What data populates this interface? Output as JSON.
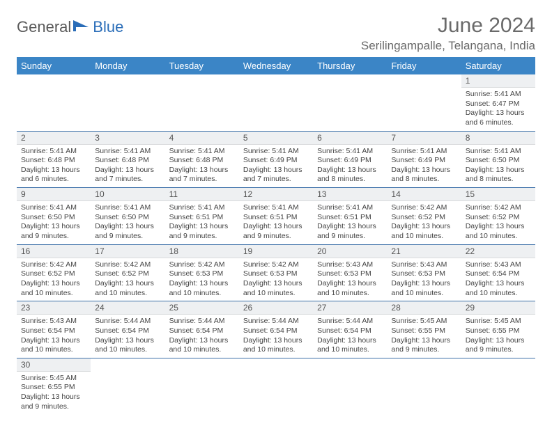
{
  "brand": {
    "word1": "General",
    "word2": "Blue"
  },
  "title": "June 2024",
  "location": "Serilingampalle, Telangana, India",
  "header_bg": "#3b85c6",
  "columns": [
    "Sunday",
    "Monday",
    "Tuesday",
    "Wednesday",
    "Thursday",
    "Friday",
    "Saturday"
  ],
  "weeks": [
    [
      null,
      null,
      null,
      null,
      null,
      null,
      {
        "n": "1",
        "sr": "5:41 AM",
        "ss": "6:47 PM",
        "dl": "13 hours and 6 minutes."
      }
    ],
    [
      {
        "n": "2",
        "sr": "5:41 AM",
        "ss": "6:48 PM",
        "dl": "13 hours and 6 minutes."
      },
      {
        "n": "3",
        "sr": "5:41 AM",
        "ss": "6:48 PM",
        "dl": "13 hours and 7 minutes."
      },
      {
        "n": "4",
        "sr": "5:41 AM",
        "ss": "6:48 PM",
        "dl": "13 hours and 7 minutes."
      },
      {
        "n": "5",
        "sr": "5:41 AM",
        "ss": "6:49 PM",
        "dl": "13 hours and 7 minutes."
      },
      {
        "n": "6",
        "sr": "5:41 AM",
        "ss": "6:49 PM",
        "dl": "13 hours and 8 minutes."
      },
      {
        "n": "7",
        "sr": "5:41 AM",
        "ss": "6:49 PM",
        "dl": "13 hours and 8 minutes."
      },
      {
        "n": "8",
        "sr": "5:41 AM",
        "ss": "6:50 PM",
        "dl": "13 hours and 8 minutes."
      }
    ],
    [
      {
        "n": "9",
        "sr": "5:41 AM",
        "ss": "6:50 PM",
        "dl": "13 hours and 9 minutes."
      },
      {
        "n": "10",
        "sr": "5:41 AM",
        "ss": "6:50 PM",
        "dl": "13 hours and 9 minutes."
      },
      {
        "n": "11",
        "sr": "5:41 AM",
        "ss": "6:51 PM",
        "dl": "13 hours and 9 minutes."
      },
      {
        "n": "12",
        "sr": "5:41 AM",
        "ss": "6:51 PM",
        "dl": "13 hours and 9 minutes."
      },
      {
        "n": "13",
        "sr": "5:41 AM",
        "ss": "6:51 PM",
        "dl": "13 hours and 9 minutes."
      },
      {
        "n": "14",
        "sr": "5:42 AM",
        "ss": "6:52 PM",
        "dl": "13 hours and 10 minutes."
      },
      {
        "n": "15",
        "sr": "5:42 AM",
        "ss": "6:52 PM",
        "dl": "13 hours and 10 minutes."
      }
    ],
    [
      {
        "n": "16",
        "sr": "5:42 AM",
        "ss": "6:52 PM",
        "dl": "13 hours and 10 minutes."
      },
      {
        "n": "17",
        "sr": "5:42 AM",
        "ss": "6:52 PM",
        "dl": "13 hours and 10 minutes."
      },
      {
        "n": "18",
        "sr": "5:42 AM",
        "ss": "6:53 PM",
        "dl": "13 hours and 10 minutes."
      },
      {
        "n": "19",
        "sr": "5:42 AM",
        "ss": "6:53 PM",
        "dl": "13 hours and 10 minutes."
      },
      {
        "n": "20",
        "sr": "5:43 AM",
        "ss": "6:53 PM",
        "dl": "13 hours and 10 minutes."
      },
      {
        "n": "21",
        "sr": "5:43 AM",
        "ss": "6:53 PM",
        "dl": "13 hours and 10 minutes."
      },
      {
        "n": "22",
        "sr": "5:43 AM",
        "ss": "6:54 PM",
        "dl": "13 hours and 10 minutes."
      }
    ],
    [
      {
        "n": "23",
        "sr": "5:43 AM",
        "ss": "6:54 PM",
        "dl": "13 hours and 10 minutes."
      },
      {
        "n": "24",
        "sr": "5:44 AM",
        "ss": "6:54 PM",
        "dl": "13 hours and 10 minutes."
      },
      {
        "n": "25",
        "sr": "5:44 AM",
        "ss": "6:54 PM",
        "dl": "13 hours and 10 minutes."
      },
      {
        "n": "26",
        "sr": "5:44 AM",
        "ss": "6:54 PM",
        "dl": "13 hours and 10 minutes."
      },
      {
        "n": "27",
        "sr": "5:44 AM",
        "ss": "6:54 PM",
        "dl": "13 hours and 10 minutes."
      },
      {
        "n": "28",
        "sr": "5:45 AM",
        "ss": "6:55 PM",
        "dl": "13 hours and 9 minutes."
      },
      {
        "n": "29",
        "sr": "5:45 AM",
        "ss": "6:55 PM",
        "dl": "13 hours and 9 minutes."
      }
    ],
    [
      {
        "n": "30",
        "sr": "5:45 AM",
        "ss": "6:55 PM",
        "dl": "13 hours and 9 minutes."
      },
      null,
      null,
      null,
      null,
      null,
      null
    ]
  ],
  "labels": {
    "sunrise": "Sunrise:",
    "sunset": "Sunset:",
    "daylight": "Daylight:"
  }
}
